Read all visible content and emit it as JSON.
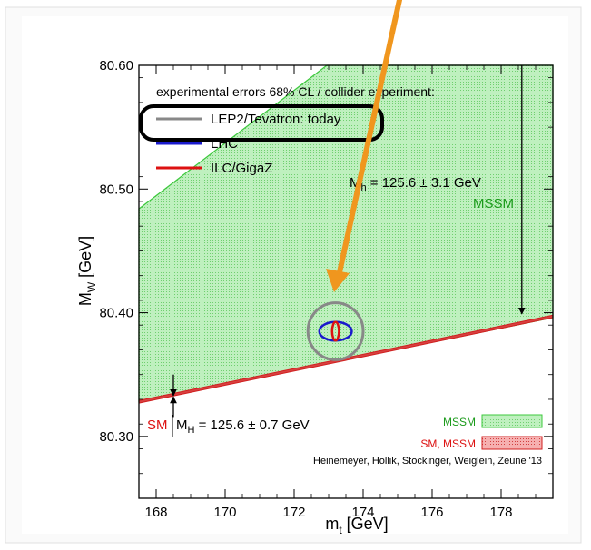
{
  "chart_data": {
    "type": "area",
    "xlabel": "m",
    "xlabel_sub": "t",
    "xlabel_unit": "[GeV]",
    "ylabel": "M",
    "ylabel_sub": "W",
    "ylabel_unit": "[GeV]",
    "xlim": [
      167.5,
      179.5
    ],
    "ylim": [
      80.25,
      80.6
    ],
    "x_ticks": [
      168,
      170,
      172,
      174,
      176,
      178
    ],
    "y_ticks": [
      80.3,
      80.4,
      80.5,
      80.6
    ],
    "x_tick_labels": [
      "168",
      "170",
      "172",
      "174",
      "176",
      "178"
    ],
    "y_tick_labels": [
      "80.30",
      "80.40",
      "80.50",
      "80.60"
    ],
    "series": [
      {
        "name": "MSSM",
        "kind": "band",
        "color": "#8fe08f",
        "polygon": [
          [
            167.5,
            80.484
          ],
          [
            172.95,
            80.6
          ],
          [
            179.5,
            80.6
          ],
          [
            179.5,
            80.396
          ],
          [
            167.5,
            80.328
          ]
        ]
      },
      {
        "name": "SM, MSSM",
        "kind": "band",
        "color": "#e05a5a",
        "polygon": [
          [
            167.5,
            80.329
          ],
          [
            179.5,
            80.398
          ],
          [
            179.5,
            80.396
          ],
          [
            167.5,
            80.327
          ]
        ]
      }
    ],
    "ellipses": [
      {
        "name": "LEP2/Tevatron: today",
        "color": "#888888",
        "cx": 173.2,
        "cy": 80.385,
        "rx": 0.8,
        "ry": 0.023
      },
      {
        "name": "LHC",
        "color": "#1a1acc",
        "cx": 173.2,
        "cy": 80.385,
        "rx": 0.47,
        "ry": 0.0075
      },
      {
        "name": "ILC/GigaZ",
        "color": "#dd1111",
        "cx": 173.2,
        "cy": 80.385,
        "rx": 0.1,
        "ry": 0.0075
      }
    ],
    "legend_title": "experimental errors 68% CL / collider experiment:",
    "legend": [
      {
        "label": "LEP2/Tevatron: today",
        "color": "#888888"
      },
      {
        "label": "LHC",
        "color": "#1a1acc"
      },
      {
        "label": "ILC/GigaZ",
        "color": "#dd1111"
      }
    ],
    "annotations": {
      "mh_mssm": "M",
      "mh_mssm_sub": "h",
      "mh_mssm_rest": " = 125.6 ± 3.1 GeV",
      "mssm_label": "MSSM",
      "sm_label": "SM",
      "mh_sm": "M",
      "mh_sm_sub": "H",
      "mh_sm_rest": " = 125.6 ± 0.7 GeV",
      "box_mssm": "MSSM",
      "box_sm_mssm": "SM, MSSM",
      "credit": "Heinemeyer, Hollik, Stockinger, Weiglein, Zeune '13"
    },
    "arrows": [
      {
        "x": 178.6,
        "y_from": 80.6,
        "y_to": 80.399
      },
      {
        "x": 168.5,
        "y_from": 80.35,
        "y_to": 80.333
      },
      {
        "x": 168.5,
        "y_from": 80.315,
        "y_to": 80.332
      }
    ],
    "overlay_arrow_color": "#f0961e",
    "highlight_box_color": "#000000",
    "grid": false
  }
}
